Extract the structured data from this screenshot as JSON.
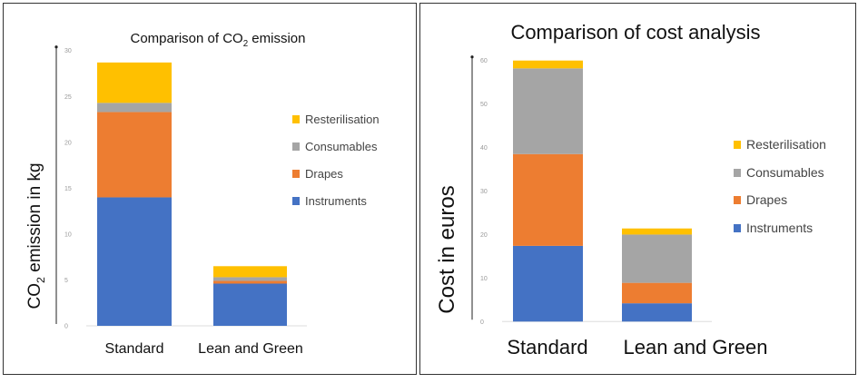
{
  "chart_data": [
    {
      "type": "bar",
      "stacked": true,
      "title": "Comparison of CO₂ emission",
      "title_parts": [
        "Comparison of CO",
        "2",
        " emission"
      ],
      "xlabel": "",
      "ylabel": "CO₂ emission in kg",
      "ylabel_parts": [
        "CO",
        "2",
        " emission in kg"
      ],
      "categories": [
        "Standard",
        "Lean and Green"
      ],
      "ylim": [
        0,
        30
      ],
      "yticks": [
        0,
        5,
        10,
        15,
        20,
        25,
        30
      ],
      "grid": false,
      "legend": "right",
      "series": [
        {
          "name": "Instruments",
          "color": "#4472C4",
          "values": [
            14.0,
            4.6
          ]
        },
        {
          "name": "Drapes",
          "color": "#ED7D31",
          "values": [
            9.3,
            0.3
          ]
        },
        {
          "name": "Consumables",
          "color": "#A5A5A5",
          "values": [
            1.0,
            0.4
          ]
        },
        {
          "name": "Resterilisation",
          "color": "#FFC000",
          "values": [
            4.4,
            1.2
          ]
        }
      ]
    },
    {
      "type": "bar",
      "stacked": true,
      "title": "Comparison of cost analysis",
      "xlabel": "",
      "ylabel": "Cost in euros",
      "categories": [
        "Standard",
        "Lean and Green"
      ],
      "ylim": [
        0,
        60
      ],
      "yticks": [
        0,
        10,
        20,
        30,
        40,
        50,
        60
      ],
      "grid": false,
      "legend": "right",
      "series": [
        {
          "name": "Instruments",
          "color": "#4472C4",
          "values": [
            17.4,
            4.2
          ]
        },
        {
          "name": "Drapes",
          "color": "#ED7D31",
          "values": [
            21.1,
            4.7
          ]
        },
        {
          "name": "Consumables",
          "color": "#A5A5A5",
          "values": [
            19.7,
            11.1
          ]
        },
        {
          "name": "Resterilisation",
          "color": "#FFC000",
          "values": [
            1.8,
            1.4
          ]
        }
      ]
    }
  ]
}
